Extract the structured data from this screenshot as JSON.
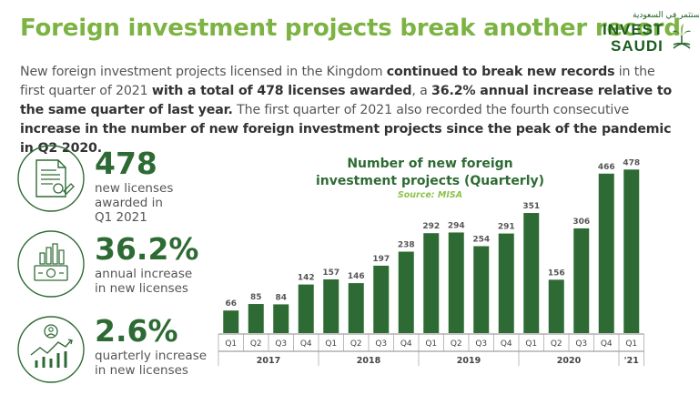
{
  "header": {
    "title": "Foreign investment projects break another record",
    "logo": {
      "arabic": "استثمر في السعودية",
      "line1": "INVEST",
      "line2": "SAUDI"
    }
  },
  "intro": {
    "p1": "New foreign investment projects licensed in the Kingdom ",
    "b1": "continued to break new records",
    "p2": " in the first quarter of 2021 ",
    "b2": "with a total of 478 licenses awarded",
    "p3": ", a ",
    "b3": "36.2% annual increase relative to the same quarter of last year.",
    "p4": " The first quarter of 2021 also recorded the fourth consecutive ",
    "b4": "increase in the number of new foreign investment projects since the peak of the pandemic in Q2 2020."
  },
  "stats": [
    {
      "value": "478",
      "line1": "new licenses",
      "line2": "awarded in",
      "line3": "Q1 2021",
      "icon": "license-document-icon"
    },
    {
      "value": "36.2%",
      "line1": "annual increase",
      "line2": "in new licenses",
      "icon": "chart-money-icon"
    },
    {
      "value": "2.6%",
      "line1": "quarterly increase",
      "line2": "in new licenses",
      "icon": "growth-person-icon"
    }
  ],
  "colors": {
    "title_green": "#7cb342",
    "dark_green": "#2e6b34",
    "bar_green": "#2e6b34",
    "source_green": "#8bc34a"
  },
  "chart_data": {
    "type": "bar",
    "title": "Number of new foreign investment projects (Quarterly)",
    "title_line1": "Number of new foreign",
    "title_line2": "investment projects (Quarterly)",
    "source": "Source: MISA",
    "categories": [
      "Q1",
      "Q2",
      "Q3",
      "Q4",
      "Q1",
      "Q2",
      "Q3",
      "Q4",
      "Q1",
      "Q2",
      "Q3",
      "Q4",
      "Q1",
      "Q2",
      "Q3",
      "Q4",
      "Q1"
    ],
    "years": [
      {
        "label": "2017",
        "count": 4
      },
      {
        "label": "2018",
        "count": 4
      },
      {
        "label": "2019",
        "count": 4
      },
      {
        "label": "2020",
        "count": 4
      },
      {
        "label": "'21",
        "count": 1
      }
    ],
    "values": [
      66,
      85,
      84,
      142,
      157,
      146,
      197,
      238,
      292,
      294,
      254,
      291,
      351,
      156,
      306,
      466,
      478
    ],
    "xlabel": "",
    "ylabel": "",
    "ylim": [
      0,
      500
    ],
    "grid": false,
    "legend": "none"
  }
}
